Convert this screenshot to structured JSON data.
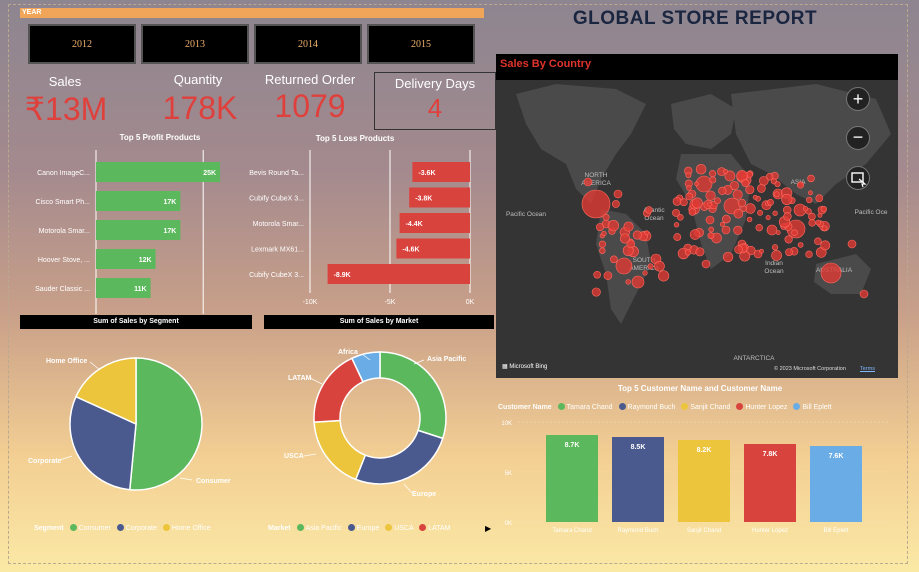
{
  "report_title": "GLOBAL STORE REPORT",
  "year_slicer": {
    "label": "YEAR",
    "years": [
      "2012",
      "2013",
      "2014",
      "2015"
    ]
  },
  "kpis": [
    {
      "label": "Sales",
      "value": "₹13M"
    },
    {
      "label": "Quantity",
      "value": "178K"
    },
    {
      "label": "Returned Order",
      "value": "1079"
    },
    {
      "label": "Delivery Days",
      "value": "4"
    }
  ],
  "map": {
    "title": "Sales By Country",
    "labels": {
      "north_america": "NORTH\nAMERICA",
      "south_america": "SOUTH\nAMERICA",
      "asia": "ASIA",
      "australia": "AUSTRALIA",
      "antarctica": "ANTARCTICA",
      "pacific1": "Pacific Ocean",
      "atlantic": "Atlantic\nOcean",
      "indian": "Indian\nOcean",
      "pacific2": "Pacific Oce"
    },
    "attribution": "© 2023 Microsoft Corporation",
    "terms": "Terms",
    "bing": "Microsoft Bing",
    "colors": {
      "bubble": "#e03a33",
      "land": "#4a4a4a",
      "sea": "#343434"
    }
  },
  "chart_data": [
    {
      "id": "top_profit",
      "type": "bar",
      "title": "Top 5 Profit Products",
      "orientation": "horizontal",
      "categories": [
        "Canon ImageC...",
        "Cisco Smart Ph...",
        "Motorola Smar...",
        "Hoover Stove, ...",
        "Sauder Classic ..."
      ],
      "values": [
        25,
        17,
        17,
        12,
        11
      ],
      "labels": [
        "25K",
        "17K",
        "17K",
        "12K",
        "11K"
      ],
      "xlim": [
        0,
        27
      ],
      "color": "#5cb85c"
    },
    {
      "id": "top_loss",
      "type": "bar",
      "title": "Top 5 Loss Products",
      "orientation": "horizontal",
      "categories": [
        "Bevis Round Ta...",
        "Cubify CubeX 3...",
        "Motorola Smar...",
        "Lexmark MX61...",
        "Cubify CubeX 3..."
      ],
      "values": [
        -3.6,
        -3.8,
        -4.4,
        -4.6,
        -8.9
      ],
      "labels": [
        "-3.6K",
        "-3.8K",
        "-4.4K",
        "-4.6K",
        "-8.9K"
      ],
      "xticks": [
        "-10K",
        "-5K",
        "0K"
      ],
      "xlim": [
        -10,
        0
      ],
      "color": "#d9433e"
    },
    {
      "id": "sales_by_segment",
      "type": "pie",
      "title": "Sum of Sales by Segment",
      "categories": [
        "Consumer",
        "Corporate",
        "Home Office"
      ],
      "values": [
        51.5,
        30.3,
        18.2
      ],
      "colors": [
        "#5cb85c",
        "#4a5a8f",
        "#ecc53d"
      ],
      "legend_title": "Segment"
    },
    {
      "id": "sales_by_market",
      "type": "pie",
      "title": "Sum of Sales by Market",
      "donut": true,
      "categories": [
        "Asia Pacific",
        "Europe",
        "USCA",
        "LATAM",
        "Africa"
      ],
      "values": [
        30,
        26,
        18,
        19,
        7
      ],
      "colors": [
        "#5cb85c",
        "#4a5a8f",
        "#ecc53d",
        "#d9433e",
        "#6aace6"
      ],
      "legend_title": "Market"
    },
    {
      "id": "top_customers",
      "type": "bar",
      "title": "Top 5 Customer Name and Customer Name",
      "categories": [
        "Tamara Chand",
        "Raymond Buch",
        "Sanjit Chand",
        "Hunter Lopez",
        "Bill Eplett"
      ],
      "values": [
        8.7,
        8.5,
        8.2,
        7.8,
        7.6
      ],
      "labels": [
        "8.7K",
        "8.5K",
        "8.2K",
        "7.8K",
        "7.6K"
      ],
      "yticks": [
        "10K",
        "5K",
        "0K"
      ],
      "ylim": [
        0,
        10
      ],
      "colors": [
        "#5cb85c",
        "#4a5a8f",
        "#ecc53d",
        "#d9433e",
        "#6aace6"
      ],
      "legend_title": "Customer Name"
    }
  ]
}
